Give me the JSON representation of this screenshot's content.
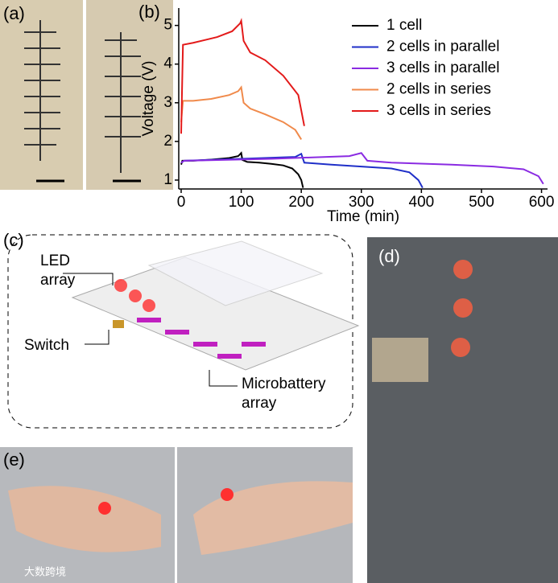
{
  "panels": [
    "(a)",
    "(b)",
    "(c)",
    "(d)",
    "(e)"
  ],
  "diagram": {
    "led": "LED\narray",
    "switch": "Switch",
    "battery": "Microbattery\narray"
  },
  "watermark": "大数跨境",
  "chart_data": {
    "type": "line",
    "xlabel": "Time (min)",
    "ylabel": "Voltage (V)",
    "xlim": [
      -4,
      610
    ],
    "ylim": [
      0.77,
      5.45
    ],
    "xticks": [
      0,
      100,
      200,
      300,
      400,
      500,
      600
    ],
    "yticks": [
      1,
      2,
      3,
      4,
      5
    ],
    "legend": "upper right",
    "series": [
      {
        "name": "1 cell",
        "color": "#000000",
        "x": [
          0,
          2,
          20,
          50,
          80,
          95,
          100,
          102,
          110,
          130,
          150,
          170,
          185,
          195,
          200,
          203
        ],
        "values": [
          1.4,
          1.5,
          1.5,
          1.53,
          1.57,
          1.62,
          1.7,
          1.52,
          1.47,
          1.45,
          1.42,
          1.38,
          1.3,
          1.15,
          1.0,
          0.8
        ]
      },
      {
        "name": "2 cells in parallel",
        "color": "#1f2fc8",
        "x": [
          0,
          5,
          100,
          190,
          200,
          205,
          250,
          300,
          350,
          380,
          395,
          402
        ],
        "values": [
          1.45,
          1.5,
          1.55,
          1.6,
          1.68,
          1.45,
          1.4,
          1.35,
          1.3,
          1.2,
          1.0,
          0.8
        ]
      },
      {
        "name": "3 cells in parallel",
        "color": "#8a2be2",
        "x": [
          0,
          5,
          150,
          280,
          300,
          310,
          350,
          450,
          520,
          570,
          595,
          603
        ],
        "values": [
          1.45,
          1.5,
          1.55,
          1.62,
          1.7,
          1.5,
          1.45,
          1.4,
          1.35,
          1.28,
          1.1,
          0.9
        ]
      },
      {
        "name": "2 cells in series",
        "color": "#f08a4b",
        "x": [
          0,
          3,
          20,
          50,
          80,
          95,
          100,
          104,
          115,
          140,
          170,
          190,
          200
        ],
        "values": [
          2.5,
          3.05,
          3.05,
          3.1,
          3.2,
          3.3,
          3.4,
          3.0,
          2.85,
          2.7,
          2.5,
          2.3,
          2.05
        ]
      },
      {
        "name": "3 cells in series",
        "color": "#e31a1a",
        "x": [
          0,
          3,
          20,
          60,
          85,
          98,
          100,
          104,
          115,
          140,
          170,
          195,
          205
        ],
        "values": [
          2.2,
          4.5,
          4.55,
          4.7,
          4.85,
          5.05,
          5.12,
          4.6,
          4.3,
          4.1,
          3.7,
          3.2,
          2.4
        ]
      }
    ]
  }
}
